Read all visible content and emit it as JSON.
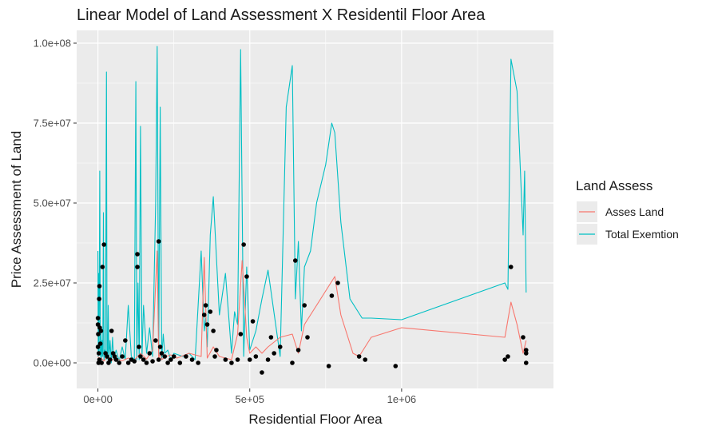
{
  "chart_data": {
    "type": "line",
    "title": "Linear Model of Land Assessment X Residentil Floor Area",
    "xlabel": "Residential Floor Area",
    "ylabel": "Price Assessment of Land",
    "xlim": [
      -70000,
      1500000
    ],
    "ylim": [
      -8000000,
      104000000
    ],
    "x_ticks": [
      {
        "value": 0,
        "label": "0e+00"
      },
      {
        "value": 500000,
        "label": "5e+05"
      },
      {
        "value": 1000000,
        "label": "1e+06"
      }
    ],
    "y_ticks": [
      {
        "value": 0,
        "label": "0.0e+00"
      },
      {
        "value": 25000000,
        "label": "2.5e+07"
      },
      {
        "value": 50000000,
        "label": "5.0e+07"
      },
      {
        "value": 75000000,
        "label": "7.5e+07"
      },
      {
        "value": 100000000,
        "label": "1.0e+08"
      }
    ],
    "grid": true,
    "legend": {
      "title": "Land Assess",
      "position": "right",
      "entries": [
        {
          "label": "Asses Land",
          "color": "#F8766D"
        },
        {
          "label": "Total Exemtion",
          "color": "#00BFC4"
        }
      ]
    },
    "series": [
      {
        "name": "Total Exemtion",
        "color": "#00BFC4",
        "x": [
          0,
          1000,
          2000,
          4000,
          6000,
          8000,
          10000,
          12000,
          14000,
          16000,
          18000,
          20000,
          22000,
          25000,
          28000,
          30000,
          32000,
          34000,
          36000,
          40000,
          44000,
          48000,
          52000,
          60000,
          70000,
          80000,
          90000,
          100000,
          110000,
          120000,
          125000,
          128000,
          132000,
          136000,
          140000,
          145000,
          150000,
          160000,
          170000,
          180000,
          190000,
          195000,
          200000,
          205000,
          210000,
          215000,
          220000,
          230000,
          240000,
          250000,
          280000,
          300000,
          320000,
          340000,
          350000,
          355000,
          360000,
          370000,
          380000,
          400000,
          420000,
          440000,
          450000,
          460000,
          470000,
          480000,
          490000,
          500000,
          520000,
          540000,
          560000,
          600000,
          620000,
          640000,
          650000,
          660000,
          670000,
          680000,
          700000,
          720000,
          750000,
          770000,
          780000,
          800000,
          830000,
          850000,
          870000,
          900000,
          1000000,
          1340000,
          1350000,
          1360000,
          1380000,
          1400000,
          1405000,
          1410000
        ],
        "y": [
          35000000,
          2000000,
          28000000,
          3000000,
          60000000,
          2000000,
          10000000,
          1000000,
          7000000,
          2000000,
          47000000,
          1000000,
          4000000,
          2000000,
          91000000,
          1000000,
          3000000,
          18000000,
          1000000,
          7000000,
          0,
          8000000,
          1000000,
          4000000,
          500000,
          5000000,
          1000000,
          18000000,
          2000000,
          1000000,
          88000000,
          1000000,
          25000000,
          1000000,
          74000000,
          2000000,
          18000000,
          3000000,
          11000000,
          2000000,
          50000000,
          99000000,
          2000000,
          80000000,
          1000000,
          9000000,
          3000000,
          4000000,
          1000000,
          3000000,
          2000000,
          3000000,
          1000000,
          35000000,
          10000000,
          14000000,
          5000000,
          40000000,
          52000000,
          15000000,
          28000000,
          3000000,
          16000000,
          12000000,
          98000000,
          2000000,
          30000000,
          4000000,
          10000000,
          20000000,
          29000000,
          2000000,
          80000000,
          93000000,
          20000000,
          38000000,
          10000000,
          30000000,
          35000000,
          50000000,
          62000000,
          75000000,
          72000000,
          44000000,
          20000000,
          17000000,
          14000000,
          14000000,
          13500000,
          25000000,
          23000000,
          95000000,
          85000000,
          40000000,
          60000000,
          22000000
        ]
      },
      {
        "name": "Asses Land",
        "color": "#F8766D",
        "x": [
          0,
          5000,
          10000,
          20000,
          30000,
          40000,
          60000,
          80000,
          100000,
          120000,
          140000,
          160000,
          180000,
          195000,
          200000,
          205000,
          210000,
          220000,
          240000,
          260000,
          300000,
          340000,
          350000,
          360000,
          380000,
          400000,
          440000,
          460000,
          475000,
          490000,
          500000,
          520000,
          540000,
          560000,
          600000,
          640000,
          660000,
          680000,
          720000,
          760000,
          780000,
          800000,
          840000,
          860000,
          880000,
          900000,
          1000000,
          1340000,
          1360000,
          1380000,
          1400000,
          1410000
        ],
        "y": [
          2000000,
          800000,
          1500000,
          600000,
          1800000,
          800000,
          1200000,
          700000,
          1500000,
          900000,
          3000000,
          1200000,
          4000000,
          35000000,
          1500000,
          3000000,
          1000000,
          1800000,
          2500000,
          1500000,
          3000000,
          2000000,
          33000000,
          1500000,
          5000000,
          2000000,
          1000000,
          9000000,
          32000000,
          8000000,
          3000000,
          5000000,
          3000000,
          5000000,
          8000000,
          9000000,
          3000000,
          12000000,
          18000000,
          24000000,
          27000000,
          15000000,
          3000000,
          2000000,
          5000000,
          8000000,
          11000000,
          8000000,
          19000000,
          12000000,
          3000000,
          7000000
        ]
      },
      {
        "name": "",
        "type": "scatter",
        "color": "#000000",
        "x": [
          0,
          0,
          0,
          1000,
          2000,
          3000,
          4000,
          5000,
          5000,
          6000,
          8000,
          10000,
          12000,
          15000,
          20000,
          25000,
          30000,
          35000,
          40000,
          45000,
          50000,
          55000,
          60000,
          70000,
          80000,
          90000,
          100000,
          110000,
          120000,
          130000,
          130000,
          135000,
          140000,
          150000,
          160000,
          170000,
          180000,
          190000,
          200000,
          200000,
          205000,
          210000,
          220000,
          230000,
          240000,
          250000,
          270000,
          290000,
          310000,
          330000,
          350000,
          355000,
          360000,
          370000,
          380000,
          385000,
          390000,
          420000,
          440000,
          460000,
          470000,
          480000,
          490000,
          500000,
          510000,
          520000,
          540000,
          560000,
          570000,
          580000,
          600000,
          640000,
          650000,
          660000,
          680000,
          690000,
          760000,
          770000,
          790000,
          860000,
          880000,
          980000,
          1340000,
          1350000,
          1360000,
          1400000,
          1410000,
          1410000,
          1410000
        ],
        "y": [
          14000000,
          12000000,
          5000000,
          9000000,
          0,
          3000000,
          20000000,
          1000000,
          24000000,
          11000000,
          6000000,
          10000000,
          0,
          30000000,
          37000000,
          3000000,
          2000000,
          0,
          1000000,
          10000000,
          3000000,
          2000000,
          1000000,
          0,
          2000000,
          7000000,
          0,
          1000000,
          500000,
          30000000,
          34000000,
          5000000,
          2000000,
          1000000,
          0,
          3000000,
          500000,
          7000000,
          38000000,
          1000000,
          5000000,
          3000000,
          2000000,
          0,
          1000000,
          2000000,
          0,
          2000000,
          1000000,
          0,
          15000000,
          18000000,
          12000000,
          16000000,
          10000000,
          2000000,
          4000000,
          1000000,
          0,
          1000000,
          9000000,
          37000000,
          27000000,
          1000000,
          13000000,
          2000000,
          -3000000,
          1000000,
          8000000,
          3000000,
          5000000,
          0,
          32000000,
          4000000,
          18000000,
          8000000,
          -1000000,
          21000000,
          25000000,
          2000000,
          1000000,
          -1000000,
          1000000,
          2000000,
          30000000,
          8000000,
          4000000,
          3000000,
          0
        ]
      }
    ]
  }
}
